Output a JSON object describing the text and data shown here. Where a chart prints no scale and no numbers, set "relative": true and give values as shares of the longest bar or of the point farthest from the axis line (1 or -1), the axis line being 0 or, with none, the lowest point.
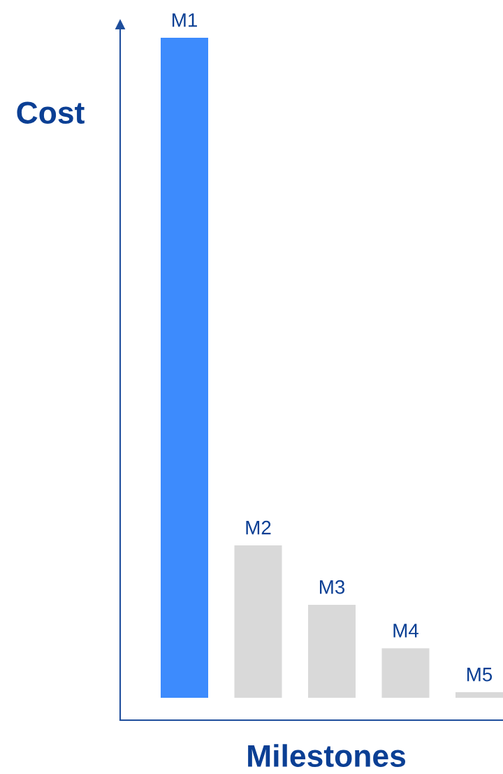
{
  "chart_data": {
    "type": "bar",
    "xlabel": "Milestones",
    "ylabel": "Cost",
    "categories": [
      "M1",
      "M2",
      "M3",
      "M4",
      "M5"
    ],
    "values": [
      1,
      0.231,
      0.141,
      0.075,
      0.0085
    ],
    "colors": [
      "#3d8bfd",
      "#d9d9d9",
      "#d9d9d9",
      "#d9d9d9",
      "#d9d9d9"
    ],
    "relative": true
  }
}
